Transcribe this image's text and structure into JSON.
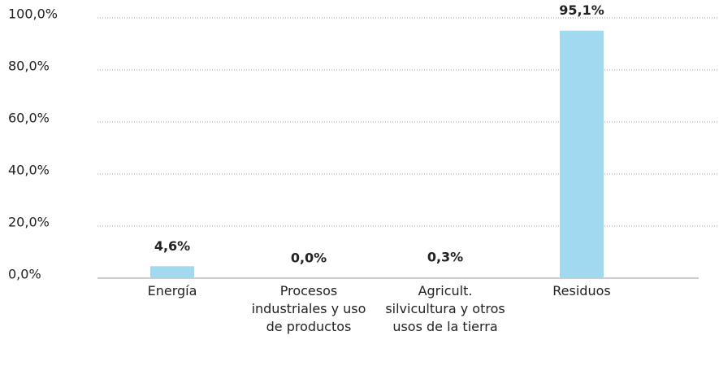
{
  "chart_data": {
    "type": "bar",
    "categories": [
      "Energía",
      "Procesos industriales y uso de productos",
      "Agricult. silvicultura y otros usos de la tierra",
      "Residuos"
    ],
    "values": [
      4.6,
      0.0,
      0.3,
      95.1
    ],
    "value_labels": [
      "4,6%",
      "0,0%",
      "0,3%",
      "95,1%"
    ],
    "color": "#a1d9f0",
    "ylim": [
      0,
      100
    ],
    "yticks": [
      {
        "value": 0,
        "label": "0,0%"
      },
      {
        "value": 20,
        "label": "20,0%"
      },
      {
        "value": 40,
        "label": "40,0%"
      },
      {
        "value": 60,
        "label": "60,0%"
      },
      {
        "value": 80,
        "label": "80,0%"
      },
      {
        "value": 100,
        "label": "100,0%"
      }
    ],
    "grid": true
  }
}
